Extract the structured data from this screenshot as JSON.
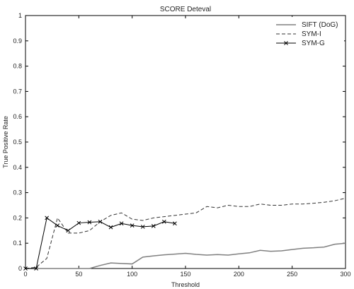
{
  "chart_data": {
    "type": "line",
    "title": "SCORE Deteval",
    "xlabel": "Threshold",
    "ylabel": "True Positive Rate",
    "xlim": [
      0,
      300
    ],
    "ylim": [
      0,
      1
    ],
    "xticks": [
      0,
      50,
      100,
      150,
      200,
      250,
      300
    ],
    "yticks": [
      0,
      0.1,
      0.2,
      0.3,
      0.4,
      0.5,
      0.6,
      0.7,
      0.8,
      0.9,
      1
    ],
    "grid": false,
    "legend_position": "top-right",
    "series": [
      {
        "name": "SIFT (DoG)",
        "style": "solid",
        "color": "#808080",
        "x": [
          0,
          10,
          20,
          30,
          40,
          50,
          60,
          70,
          80,
          90,
          100,
          110,
          120,
          130,
          140,
          150,
          160,
          170,
          180,
          190,
          200,
          210,
          220,
          230,
          240,
          250,
          260,
          270,
          280,
          290,
          300
        ],
        "y": [
          0,
          0,
          0,
          0,
          0,
          0,
          0,
          0.012,
          0.022,
          0.02,
          0.018,
          0.045,
          0.05,
          0.054,
          0.057,
          0.06,
          0.056,
          0.053,
          0.055,
          0.053,
          0.058,
          0.062,
          0.072,
          0.068,
          0.07,
          0.075,
          0.08,
          0.082,
          0.085,
          0.096,
          0.1
        ]
      },
      {
        "name": "SYM-I",
        "style": "dashed",
        "color": "#333333",
        "x": [
          0,
          10,
          20,
          30,
          40,
          50,
          60,
          70,
          80,
          90,
          100,
          110,
          120,
          130,
          140,
          150,
          160,
          170,
          180,
          190,
          200,
          210,
          220,
          230,
          240,
          250,
          260,
          270,
          280,
          290,
          300
        ],
        "y": [
          0,
          0.005,
          0.04,
          0.2,
          0.14,
          0.14,
          0.15,
          0.185,
          0.21,
          0.22,
          0.195,
          0.19,
          0.2,
          0.205,
          0.21,
          0.215,
          0.22,
          0.245,
          0.24,
          0.25,
          0.245,
          0.245,
          0.255,
          0.25,
          0.25,
          0.255,
          0.255,
          0.258,
          0.262,
          0.268,
          0.278
        ]
      },
      {
        "name": "SYM-G",
        "style": "solid-x",
        "color": "#000000",
        "x": [
          0,
          10,
          20,
          30,
          40,
          50,
          60,
          70,
          80,
          90,
          100,
          110,
          120,
          130,
          140
        ],
        "y": [
          0,
          0,
          0.2,
          0.17,
          0.15,
          0.18,
          0.183,
          0.185,
          0.163,
          0.178,
          0.17,
          0.165,
          0.168,
          0.185,
          0.178
        ]
      }
    ]
  }
}
